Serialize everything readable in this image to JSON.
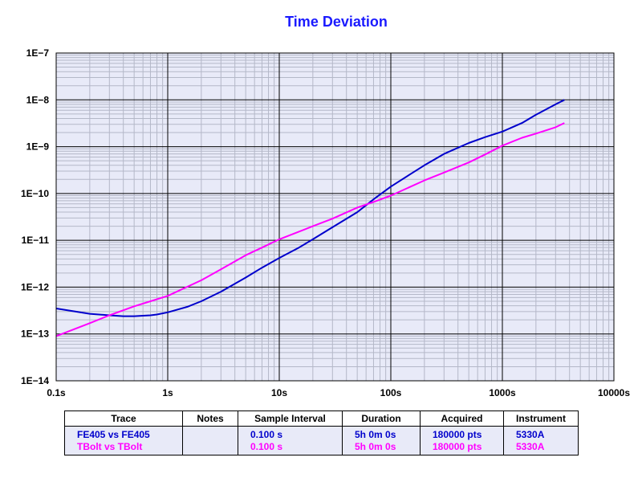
{
  "chart_data": {
    "type": "line",
    "title": "Time Deviation",
    "xlabel": "",
    "ylabel": "",
    "xscale": "log",
    "yscale": "log",
    "xlim": [
      0.1,
      10000
    ],
    "ylim": [
      1e-14,
      1e-07
    ],
    "grid": true,
    "x_tick_labels": [
      "0.1s",
      "1s",
      "10s",
      "100s",
      "1000s",
      "10000s"
    ],
    "y_tick_labels": [
      "1E−14",
      "1E−13",
      "1E−12",
      "1E−11",
      "1E−10",
      "1E−9",
      "1E−8",
      "1E−7"
    ],
    "series": [
      {
        "name": "FE405 vs FE405",
        "color": "#0000cc",
        "x": [
          0.1,
          0.15,
          0.2,
          0.3,
          0.4,
          0.5,
          0.6,
          0.7,
          0.8,
          1,
          1.5,
          2,
          3,
          5,
          7,
          10,
          15,
          20,
          30,
          50,
          70,
          100,
          150,
          200,
          300,
          500,
          700,
          1000,
          1500,
          2000,
          3000,
          3600
        ],
        "y": [
          3.5e-13,
          3e-13,
          2.7e-13,
          2.5e-13,
          2.4e-13,
          2.4e-13,
          2.45e-13,
          2.5e-13,
          2.6e-13,
          2.9e-13,
          3.8e-13,
          5e-13,
          8e-13,
          1.6e-12,
          2.6e-12,
          4.2e-12,
          7e-12,
          1.05e-11,
          1.9e-11,
          4e-11,
          7.5e-11,
          1.4e-10,
          2.6e-10,
          4e-10,
          7e-10,
          1.2e-09,
          1.6e-09,
          2.1e-09,
          3.2e-09,
          4.8e-09,
          8e-09,
          1e-08
        ]
      },
      {
        "name": "TBolt vs TBolt",
        "color": "#ff00ff",
        "x": [
          0.1,
          0.2,
          0.3,
          0.5,
          0.7,
          1,
          2,
          3,
          5,
          7,
          10,
          20,
          30,
          50,
          70,
          100,
          200,
          300,
          500,
          700,
          1000,
          1500,
          2000,
          3000,
          3600
        ],
        "y": [
          9e-14,
          1.7e-13,
          2.5e-13,
          3.9e-13,
          5e-13,
          6.5e-13,
          1.4e-12,
          2.4e-12,
          4.8e-12,
          7e-12,
          1.05e-11,
          2e-11,
          2.9e-11,
          5e-11,
          6.6e-11,
          9e-11,
          1.9e-10,
          2.8e-10,
          4.6e-10,
          6.8e-10,
          1.05e-09,
          1.55e-09,
          1.9e-09,
          2.6e-09,
          3.2e-09
        ]
      }
    ]
  },
  "legend_table": {
    "headers": [
      "Trace",
      "Notes",
      "Sample Interval",
      "Duration",
      "Acquired",
      "Instrument"
    ],
    "rows": [
      {
        "color": "#0000cc",
        "cells": [
          "FE405 vs FE405",
          "",
          "0.100 s",
          "5h 0m 0s",
          "180000 pts",
          "5330A"
        ]
      },
      {
        "color": "#ff00ff",
        "cells": [
          "TBolt vs TBolt",
          "",
          "0.100 s",
          "5h 0m 0s",
          "180000 pts",
          "5330A"
        ]
      }
    ]
  }
}
